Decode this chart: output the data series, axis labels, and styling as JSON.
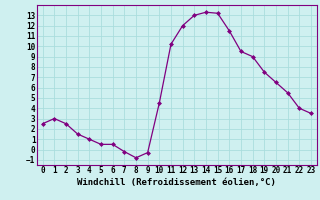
{
  "x": [
    0,
    1,
    2,
    3,
    4,
    5,
    6,
    7,
    8,
    9,
    10,
    11,
    12,
    13,
    14,
    15,
    16,
    17,
    18,
    19,
    20,
    21,
    22,
    23
  ],
  "y": [
    2.5,
    3.0,
    2.5,
    1.5,
    1.0,
    0.5,
    0.5,
    -0.2,
    -0.8,
    -0.3,
    4.5,
    10.2,
    12.0,
    13.0,
    13.3,
    13.2,
    11.5,
    9.5,
    9.0,
    7.5,
    6.5,
    5.5,
    4.0,
    3.5
  ],
  "line_color": "#800080",
  "marker": "D",
  "marker_size": 2,
  "bg_color": "#cff0f0",
  "grid_color": "#aadddd",
  "xlabel": "Windchill (Refroidissement éolien,°C)",
  "xlabel_fontsize": 6.5,
  "tick_fontsize": 5.5,
  "ylim": [
    -1.5,
    14.0
  ],
  "xlim": [
    -0.5,
    23.5
  ],
  "yticks": [
    -1,
    0,
    1,
    2,
    3,
    4,
    5,
    6,
    7,
    8,
    9,
    10,
    11,
    12,
    13
  ],
  "xticks": [
    0,
    1,
    2,
    3,
    4,
    5,
    6,
    7,
    8,
    9,
    10,
    11,
    12,
    13,
    14,
    15,
    16,
    17,
    18,
    19,
    20,
    21,
    22,
    23
  ]
}
